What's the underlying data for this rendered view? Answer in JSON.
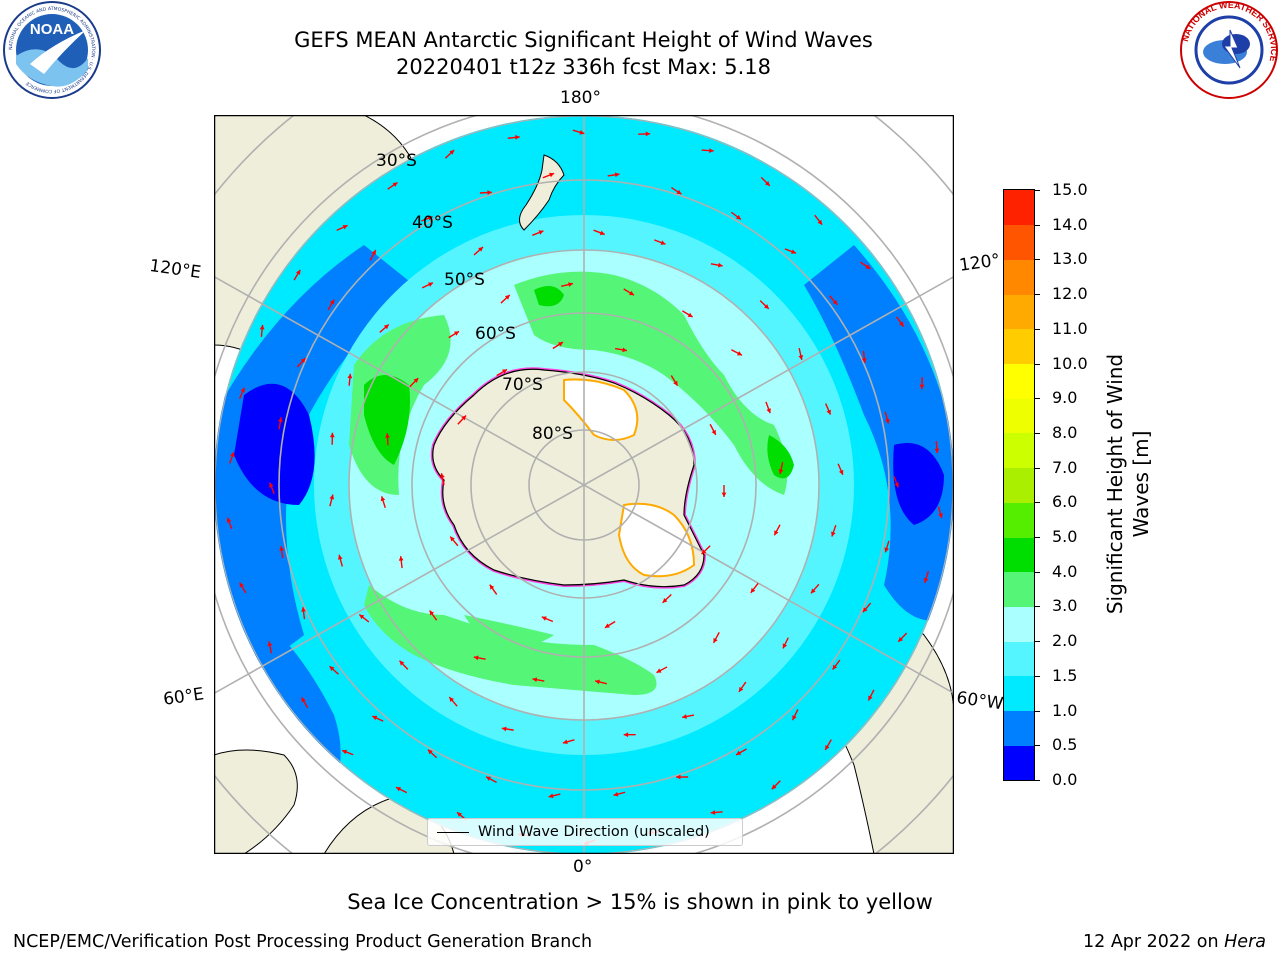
{
  "header": {
    "title_line1": "GEFS MEAN Antarctic Significant Height of Wind Waves",
    "title_line2": "20220401 t12z 336h fcst   Max: 5.18"
  },
  "logos": {
    "left": "NOAA",
    "left_ring_text": "NATIONAL OCEANIC AND ATMOSPHERIC ADMINISTRATION · U.S. DEPARTMENT OF COMMERCE",
    "right_ring_text": "NATIONAL WEATHER SERVICE"
  },
  "map": {
    "projection": "south-polar-stereographic",
    "longitude_labels": {
      "top": "180°",
      "bottom": "0°",
      "upper_left": "120°E",
      "lower_left": "60°E",
      "upper_right": "120°",
      "lower_right": "60°W"
    },
    "latitude_labels": [
      "30°S",
      "40°S",
      "50°S",
      "60°S",
      "70°S",
      "80°S"
    ],
    "land_color": "#efeedb",
    "ocean_colors": {
      "deep_blue": "#0000ff",
      "blue": "#0080ff",
      "cyan": "#00eaff",
      "light_cyan": "#55f5ff",
      "pale_cyan": "#aaffff",
      "light_green": "#55f577",
      "green": "#00dd00"
    },
    "arrow_color": "#ff0000",
    "sea_ice_colors": [
      "#ff00ff",
      "#ffaa00",
      "#ffff00"
    ]
  },
  "legend": {
    "label": "Wind Wave Direction (unscaled)"
  },
  "colorbar": {
    "title_line1": "Significant Height of Wind",
    "title_line2": "Waves [m]",
    "ticks": [
      "0.0",
      "0.5",
      "1.0",
      "1.5",
      "2.0",
      "3.0",
      "4.0",
      "5.0",
      "6.0",
      "7.0",
      "8.0",
      "9.0",
      "10.0",
      "11.0",
      "12.0",
      "13.0",
      "14.0",
      "15.0"
    ],
    "colors": [
      "#0000ff",
      "#0080ff",
      "#00eaff",
      "#55f5ff",
      "#aaffff",
      "#55f577",
      "#00dd00",
      "#55ee00",
      "#aaee00",
      "#ccff00",
      "#eeff00",
      "#ffff00",
      "#ffcc00",
      "#ffaa00",
      "#ff8800",
      "#ff5500",
      "#ff2200"
    ]
  },
  "caption": "Sea Ice Concentration > 15% is shown in pink to yellow",
  "footer": {
    "left": "NCEP/EMC/Verification Post Processing Product Generation Branch",
    "right_date": "12 Apr 2022 on ",
    "right_machine": "Hera"
  }
}
